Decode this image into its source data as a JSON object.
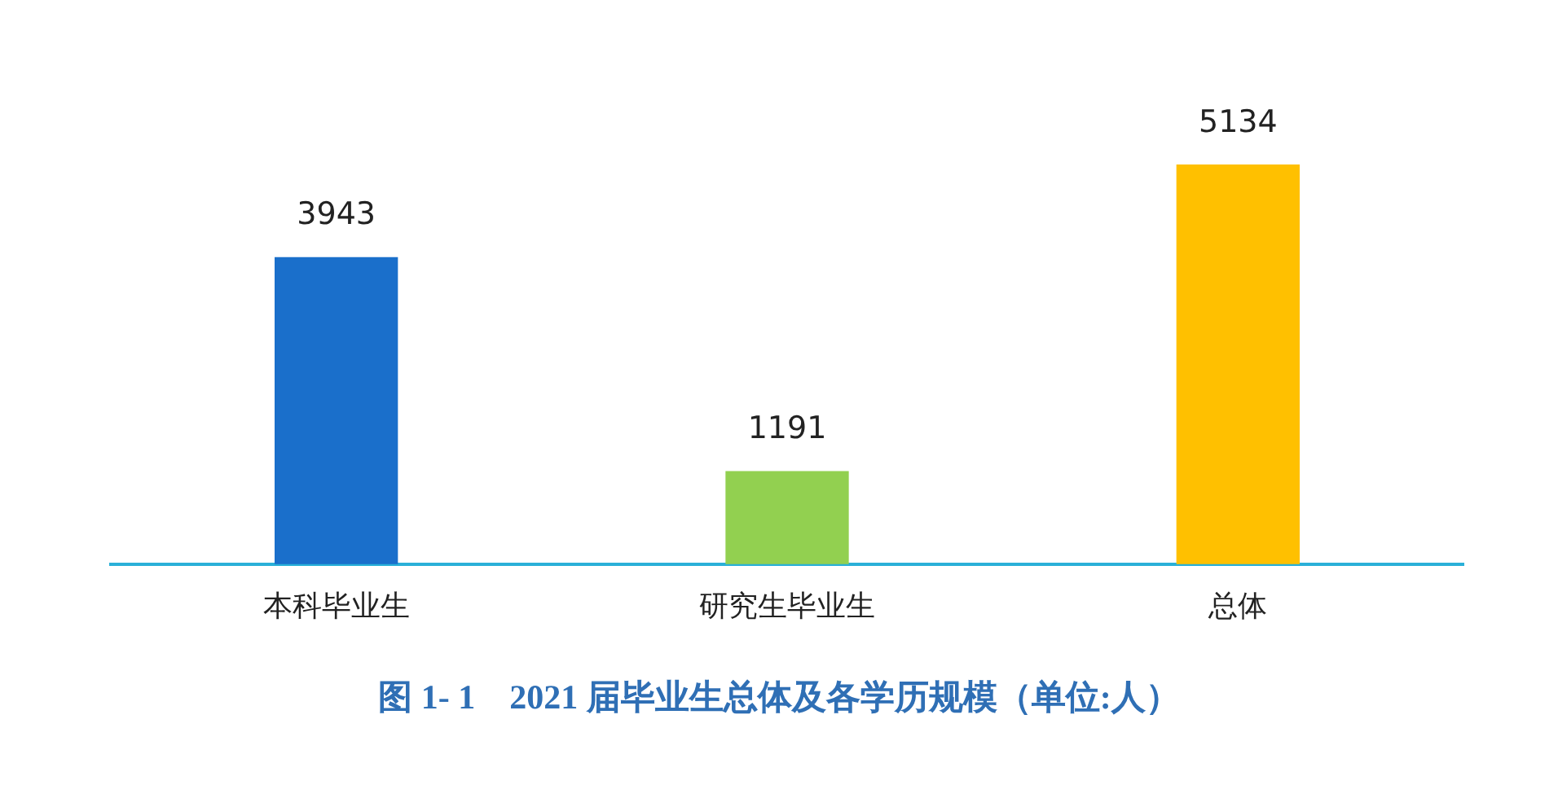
{
  "chart_data": {
    "type": "bar",
    "title": "图 1- 1　2021 届毕业生总体及各学历规模（单位:人）",
    "categories": [
      "本科毕业生",
      "研究生毕业生",
      "总体"
    ],
    "values": [
      3943,
      1191,
      5134
    ],
    "colors": [
      "#1a6fcb",
      "#92d050",
      "#ffc000"
    ],
    "data_labels": true,
    "grid": false,
    "legend": false
  }
}
